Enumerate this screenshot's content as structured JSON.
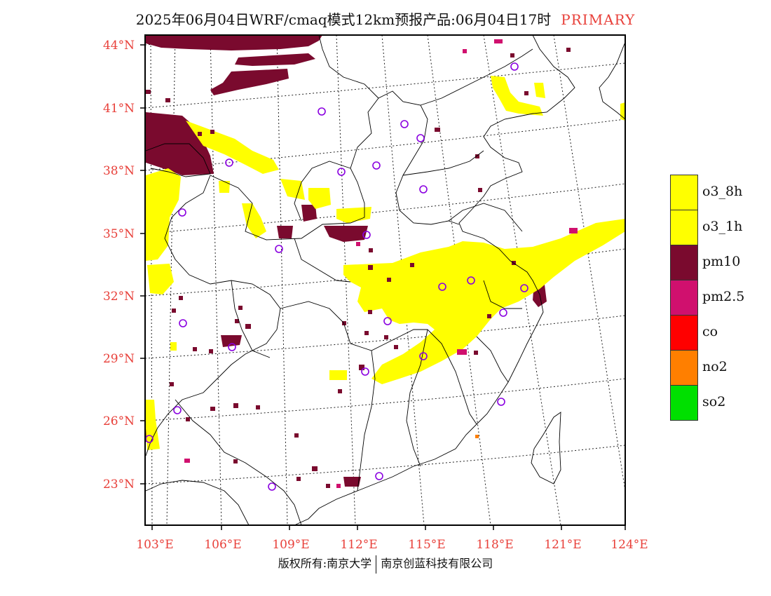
{
  "title": {
    "main": "2025年06月04日WRF/cmaq模式12km预报产品:06月04日17时",
    "product": "PRIMARY"
  },
  "axes": {
    "lat_labels": [
      "44°N",
      "41°N",
      "38°N",
      "35°N",
      "32°N",
      "29°N",
      "26°N",
      "23°N"
    ],
    "lon_labels": [
      "103°E",
      "106°E",
      "109°E",
      "112°E",
      "115°E",
      "118°E",
      "121°E",
      "124°E"
    ]
  },
  "legend": [
    {
      "label": "o3_8h",
      "color": "#ffff00"
    },
    {
      "label": "o3_1h",
      "color": "#ffff00"
    },
    {
      "label": "pm10",
      "color": "#7a0a2e"
    },
    {
      "label": "pm2.5",
      "color": "#d0106e"
    },
    {
      "label": "co",
      "color": "#ff0000"
    },
    {
      "label": "no2",
      "color": "#ff7f00"
    },
    {
      "label": "so2",
      "color": "#00e000"
    }
  ],
  "colors": {
    "label_accent": "#e8403a",
    "station_marker": "#8a00e0",
    "boundary": "#000000"
  },
  "footer": {
    "left": "版权所有:南京大学",
    "right": "南京创蓝科技有限公司"
  }
}
